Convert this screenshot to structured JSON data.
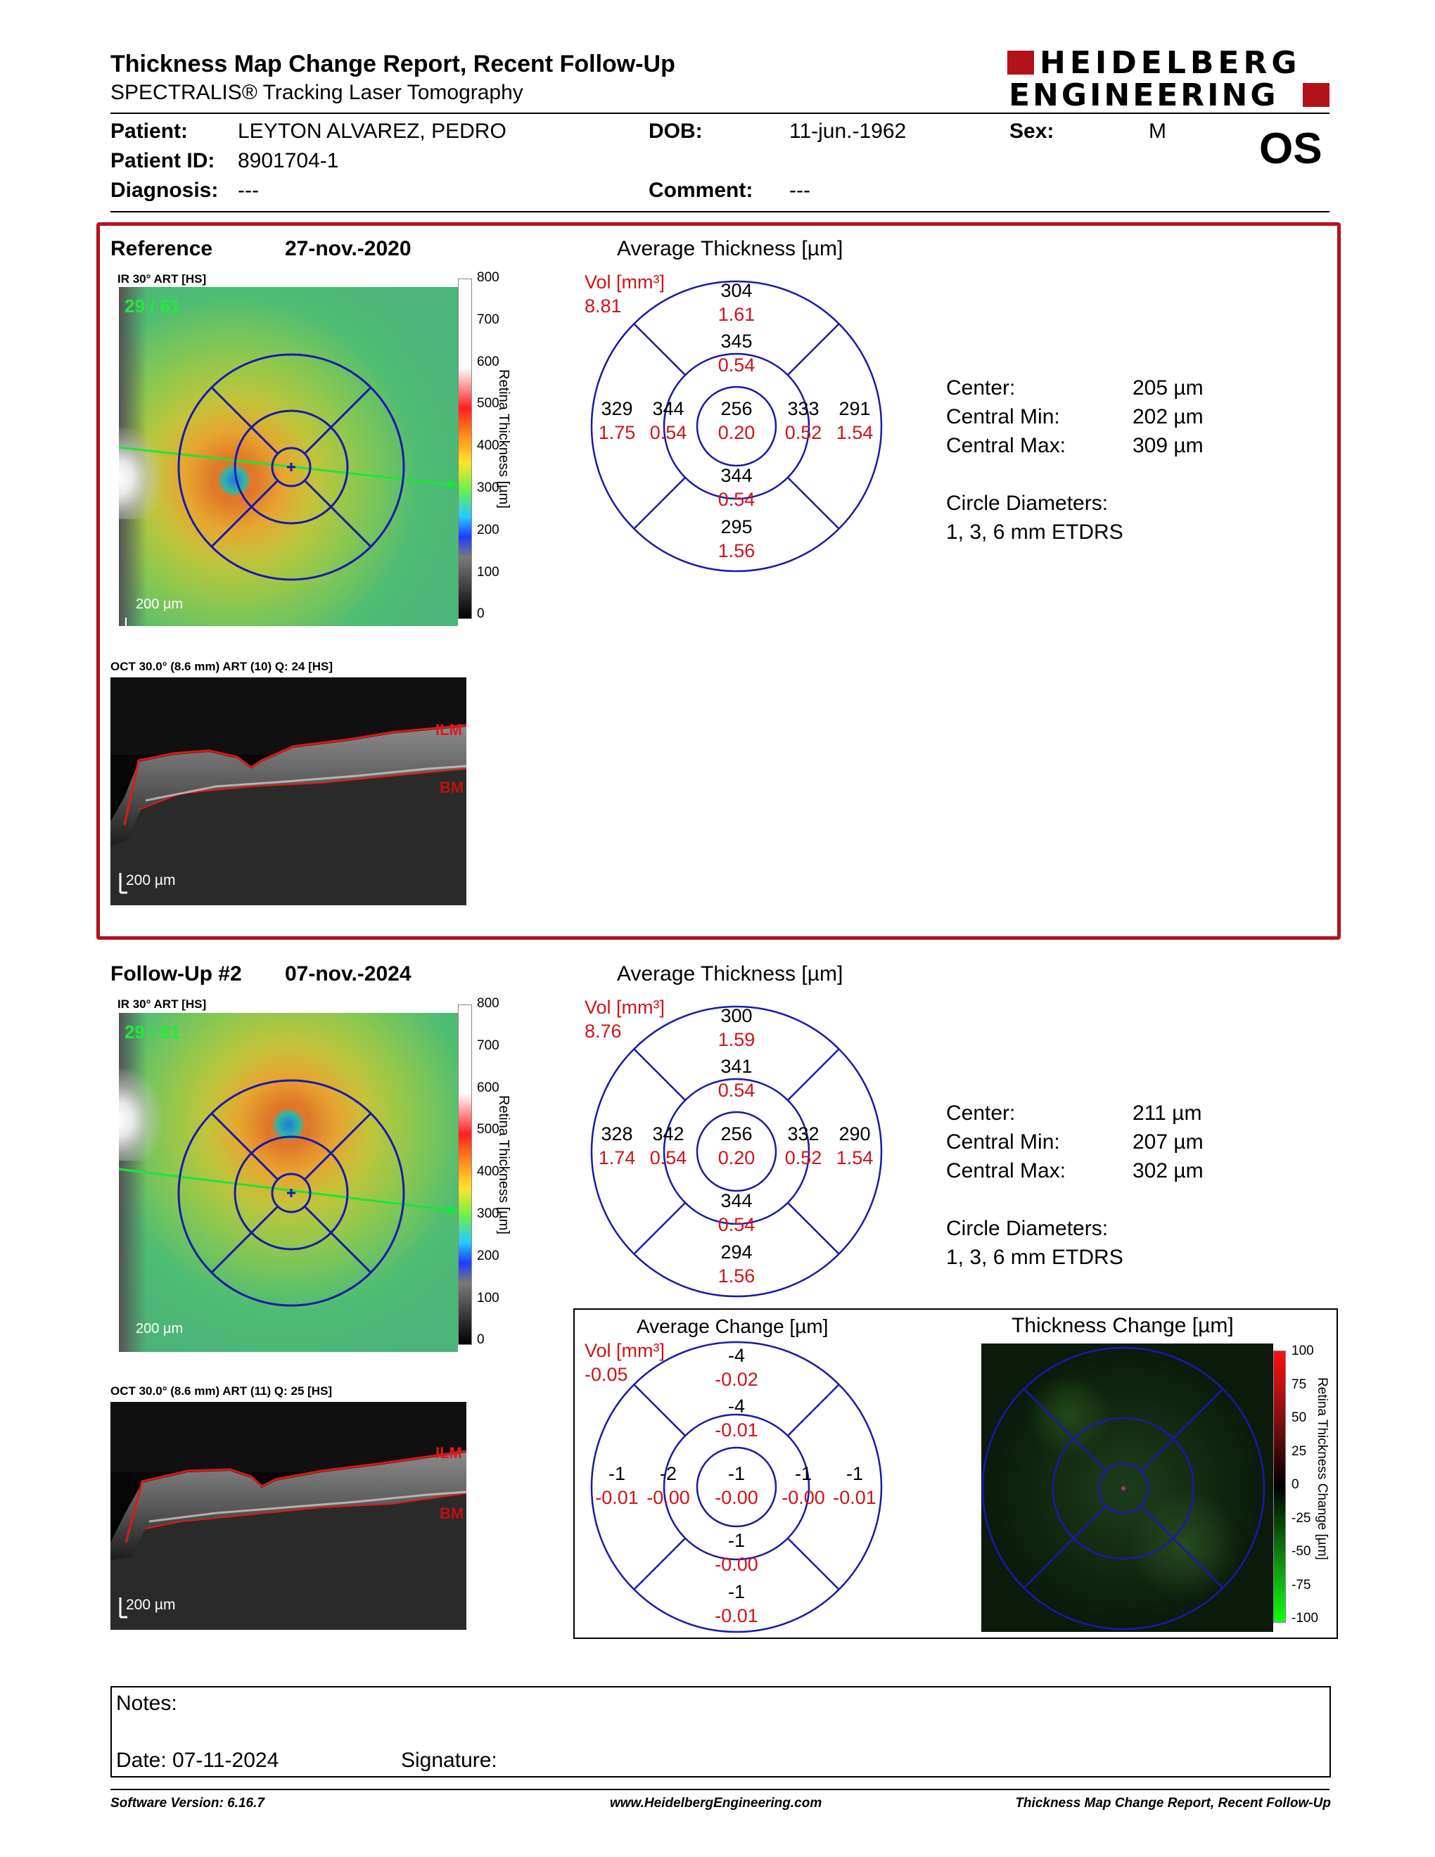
{
  "header": {
    "title": "Thickness Map Change Report, Recent Follow-Up",
    "subtitle": "SPECTRALIS® Tracking Laser Tomography",
    "logo_line1": "HEIDELBERG",
    "logo_line2": "ENGINEERING"
  },
  "patient": {
    "patient_label": "Patient:",
    "patient_value": "LEYTON ALVAREZ, PEDRO",
    "dob_label": "DOB:",
    "dob_value": "11-jun.-1962",
    "sex_label": "Sex:",
    "sex_value": "M",
    "eye": "OS",
    "id_label": "Patient ID:",
    "id_value": "8901704-1",
    "diagnosis_label": "Diagnosis:",
    "diagnosis_value": "---",
    "comment_label": "Comment:",
    "comment_value": "---"
  },
  "reference": {
    "label": "Reference",
    "date": "27-nov.-2020",
    "ir_caption": "IR 30° ART [HS]",
    "ir_frame": "29 / 61",
    "scalebar": "200 µm",
    "scale_ticks": [
      "800",
      "700",
      "600",
      "500",
      "400",
      "300",
      "200",
      "100",
      "0"
    ],
    "scale_title": "Retina Thickness [µm]",
    "oct_caption": "OCT 30.0° (8.6 mm) ART (10) Q: 24 [HS]",
    "oct_ilm": "ILM",
    "oct_bm": "BM",
    "oct_scalebar": "200 µm",
    "avg_title": "Average Thickness [µm]",
    "vol_label": "Vol [mm³]",
    "vol_value": "8.81",
    "grid": {
      "outer_sup": "304",
      "outer_sup_vol": "1.61",
      "inner_sup": "345",
      "inner_sup_vol": "0.54",
      "outer_temp": "329",
      "outer_temp_vol": "1.75",
      "inner_temp": "344",
      "inner_temp_vol": "0.54",
      "center": "256",
      "center_vol": "0.20",
      "inner_nas": "333",
      "inner_nas_vol": "0.52",
      "outer_nas": "291",
      "outer_nas_vol": "1.54",
      "inner_inf": "344",
      "inner_inf_vol": "0.54",
      "outer_inf": "295",
      "outer_inf_vol": "1.56"
    },
    "stats": {
      "center_label": "Center:",
      "center_value": "205 µm",
      "min_label": "Central Min:",
      "min_value": "202 µm",
      "max_label": "Central Max:",
      "max_value": "309 µm",
      "circle_label": "Circle Diameters:",
      "circle_value": "1, 3, 6 mm ETDRS"
    }
  },
  "followup": {
    "label": "Follow-Up #2",
    "date": "07-nov.-2024",
    "ir_caption": "IR 30° ART [HS]",
    "ir_frame": "29 / 61",
    "scalebar": "200 µm",
    "scale_ticks": [
      "800",
      "700",
      "600",
      "500",
      "400",
      "300",
      "200",
      "100",
      "0"
    ],
    "scale_title": "Retina Thickness [µm]",
    "oct_caption": "OCT 30.0° (8.6 mm) ART (11) Q: 25 [HS]",
    "oct_ilm": "ILM",
    "oct_bm": "BM",
    "oct_scalebar": "200 µm",
    "avg_title": "Average Thickness [µm]",
    "vol_label": "Vol [mm³]",
    "vol_value": "8.76",
    "grid": {
      "outer_sup": "300",
      "outer_sup_vol": "1.59",
      "inner_sup": "341",
      "inner_sup_vol": "0.54",
      "outer_temp": "328",
      "outer_temp_vol": "1.74",
      "inner_temp": "342",
      "inner_temp_vol": "0.54",
      "center": "256",
      "center_vol": "0.20",
      "inner_nas": "332",
      "inner_nas_vol": "0.52",
      "outer_nas": "290",
      "outer_nas_vol": "1.54",
      "inner_inf": "344",
      "inner_inf_vol": "0.54",
      "outer_inf": "294",
      "outer_inf_vol": "1.56"
    },
    "stats": {
      "center_label": "Center:",
      "center_value": "211 µm",
      "min_label": "Central Min:",
      "min_value": "207 µm",
      "max_label": "Central Max:",
      "max_value": "302 µm",
      "circle_label": "Circle Diameters:",
      "circle_value": "1, 3, 6 mm ETDRS"
    }
  },
  "change": {
    "avg_title": "Average Change [µm]",
    "vol_label": "Vol [mm³]",
    "vol_value": "-0.05",
    "grid": {
      "outer_sup": "-4",
      "outer_sup_vol": "-0.02",
      "inner_sup": "-4",
      "inner_sup_vol": "-0.01",
      "outer_temp": "-1",
      "outer_temp_vol": "-0.01",
      "inner_temp": "-2",
      "inner_temp_vol": "-0.00",
      "center": "-1",
      "center_vol": "-0.00",
      "inner_nas": "-1",
      "inner_nas_vol": "-0.00",
      "outer_nas": "-1",
      "outer_nas_vol": "-0.01",
      "inner_inf": "-1",
      "inner_inf_vol": "-0.00",
      "outer_inf": "-1",
      "outer_inf_vol": "-0.01"
    },
    "map_title": "Thickness Change [µm]",
    "scale_ticks": [
      "100",
      "75",
      "50",
      "25",
      "0",
      "-25",
      "-50",
      "-75",
      "-100"
    ],
    "scale_title": "Retina Thickness Change [µm]"
  },
  "notes": {
    "notes_label": "Notes:",
    "date_label": "Date: 07-11-2024",
    "signature_label": "Signature:"
  },
  "footer": {
    "software": "Software Version: 6.16.7",
    "url": "www.HeidelbergEngineering.com",
    "report": "Thickness Map Change Report, Recent Follow-Up"
  },
  "colors": {
    "frame": "#b3121b",
    "grid_line": "#1a1aa8",
    "volume_text": "#d0131a",
    "logo": "#b3121b"
  }
}
